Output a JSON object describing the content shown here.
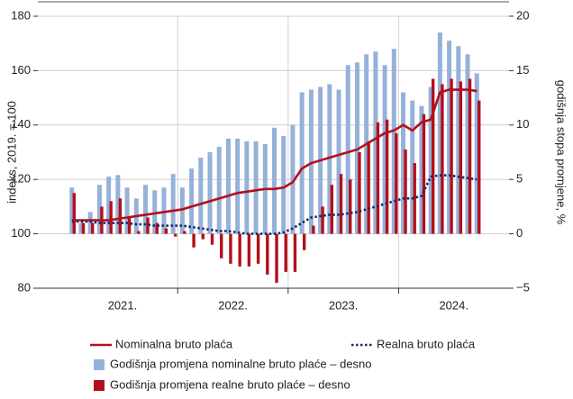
{
  "chart_data": {
    "type": "combo",
    "y_label": "indeks, 2019. = 100",
    "y2_label": "godišnja stopa promjene, %",
    "categories": [
      null,
      null,
      null,
      null,
      null,
      null,
      null,
      null,
      null,
      null,
      null,
      null,
      null,
      null,
      null,
      null,
      null,
      null,
      null,
      null,
      null,
      null,
      null,
      null,
      null,
      null,
      null,
      null,
      null,
      null,
      null,
      null,
      null,
      null,
      null,
      null,
      null,
      null,
      null,
      null,
      null,
      null,
      null,
      null,
      null
    ],
    "xlim": [
      -3.7,
      47.5
    ],
    "xticks": [
      {
        "value": 5.5,
        "label": "2021."
      },
      {
        "value": 17.5,
        "label": "2022."
      },
      {
        "value": 29.5,
        "label": "2023."
      },
      {
        "value": 41.5,
        "label": "2024."
      }
    ],
    "xgrid": [
      11.5,
      23.5,
      35.5
    ],
    "ylim": [
      80,
      180
    ],
    "yticks": [
      80,
      100,
      120,
      140,
      160,
      180
    ],
    "y2lim": [
      -5,
      20
    ],
    "y2ticks": [
      {
        "value": -5,
        "label": "−5"
      },
      0,
      5,
      10,
      15,
      20
    ],
    "grid": true,
    "series": [
      {
        "name": "Godišnja promjena nominalne bruto plaće – desno",
        "type": "bar",
        "axis": "y2",
        "color": "#95b1d9",
        "values": [
          4.25,
          1,
          2,
          4.5,
          5.25,
          5.4,
          4.25,
          3.25,
          4.5,
          4,
          4.25,
          5.5,
          4.25,
          6,
          7,
          7.5,
          8,
          8.75,
          8.75,
          8.5,
          8.5,
          8.25,
          9.75,
          9,
          10,
          13,
          13.25,
          13.5,
          13.75,
          13.25,
          15.5,
          15.75,
          16.5,
          16.75,
          15.5,
          17,
          13,
          12.25,
          11.75,
          13.5,
          18.5,
          17.75,
          17.25,
          16.5,
          14.75
        ]
      },
      {
        "name": "Godišnja promjena realne bruto plaće – desno",
        "type": "bar",
        "axis": "y2",
        "color": "#b3101c",
        "values": [
          3.75,
          1,
          1,
          2.5,
          3,
          3.25,
          1.5,
          0.25,
          1.5,
          1,
          0.5,
          -0.25,
          0.25,
          -1.25,
          -0.5,
          -1,
          -2.25,
          -2.75,
          -3,
          -3,
          -2.75,
          -3.75,
          -4.5,
          -3.5,
          -3.5,
          -1.5,
          0.75,
          2.5,
          4.5,
          5.5,
          5,
          7.5,
          8.5,
          10.25,
          10.5,
          9.25,
          7.75,
          6.5,
          11,
          14.25,
          13.75,
          14.25,
          14,
          14.25,
          12.25
        ]
      },
      {
        "name": "Nominalna bruto plaća",
        "type": "line",
        "color": "#b3101c",
        "dash": false,
        "values": [
          105,
          105,
          105,
          105,
          105,
          105.5,
          106,
          106.5,
          107,
          107.5,
          108,
          108.5,
          109,
          110,
          111,
          112,
          113,
          114,
          115,
          115.5,
          116,
          116.5,
          116.5,
          117,
          119,
          124,
          126,
          127,
          128,
          129,
          130,
          131,
          133,
          135,
          137,
          138,
          140,
          138,
          141,
          142,
          152,
          153,
          153,
          153,
          152.5
        ]
      },
      {
        "name": "Realna bruto plaća",
        "type": "line",
        "color": "#1b2a6b",
        "dash": true,
        "values": [
          104.5,
          104.5,
          104.5,
          104,
          104,
          104,
          104,
          103.5,
          103.5,
          103,
          103,
          103,
          103,
          102.5,
          102,
          101.5,
          101,
          101,
          100.5,
          100,
          100,
          100,
          100,
          100.5,
          102,
          104,
          106,
          106.5,
          107,
          107,
          107.5,
          108,
          109,
          110,
          111,
          112,
          113,
          113,
          114,
          121,
          121.5,
          121.5,
          121,
          120.5,
          120
        ]
      }
    ]
  }
}
